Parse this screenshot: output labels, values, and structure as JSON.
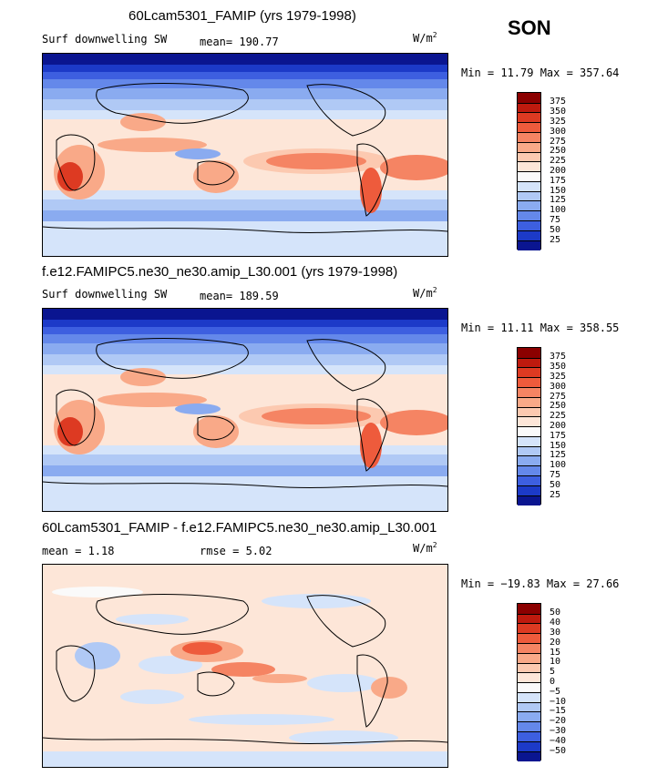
{
  "season": "SON",
  "chart_data": [
    {
      "type": "heatmap",
      "title": "60Lcam5301_FAMIP (yrs 1979-1998)",
      "left_label": "Surf downwelling SW",
      "stat_text": "mean= 190.77",
      "units": "W/m",
      "units_exp": "2",
      "min": 11.79,
      "max": 357.64,
      "minmax_text": "Min =  11.79 Max = 357.64",
      "levels": [
        "375",
        "350",
        "325",
        "300",
        "275",
        "250",
        "225",
        "200",
        "175",
        "150",
        "125",
        "100",
        "75",
        "50",
        "25"
      ],
      "colors": [
        "#8b0000",
        "#be1a0e",
        "#dd3a22",
        "#ee5b3c",
        "#f58463",
        "#f9a988",
        "#fcc9b0",
        "#fde6d8",
        "#fafafa",
        "#d5e4fa",
        "#b0c9f5",
        "#8aabf0",
        "#6488ea",
        "#3d5fe0",
        "#1c3ac8",
        "#0a1590"
      ],
      "mean": 190.77
    },
    {
      "type": "heatmap",
      "title": "f.e12.FAMIPC5.ne30_ne30.amip_L30.001 (yrs 1979-1998)",
      "left_label": "Surf downwelling SW",
      "stat_text": "mean= 189.59",
      "units": "W/m",
      "units_exp": "2",
      "min": 11.11,
      "max": 358.55,
      "minmax_text": "Min =  11.11 Max = 358.55",
      "levels": [
        "375",
        "350",
        "325",
        "300",
        "275",
        "250",
        "225",
        "200",
        "175",
        "150",
        "125",
        "100",
        "75",
        "50",
        "25"
      ],
      "colors": [
        "#8b0000",
        "#be1a0e",
        "#dd3a22",
        "#ee5b3c",
        "#f58463",
        "#f9a988",
        "#fcc9b0",
        "#fde6d8",
        "#fafafa",
        "#d5e4fa",
        "#b0c9f5",
        "#8aabf0",
        "#6488ea",
        "#3d5fe0",
        "#1c3ac8",
        "#0a1590"
      ],
      "mean": 189.59
    },
    {
      "type": "heatmap",
      "title": "60Lcam5301_FAMIP - f.e12.FAMIPC5.ne30_ne30.amip_L30.001",
      "left_label": "mean =    1.18",
      "stat_text": "rmse =    5.02",
      "units": "W/m",
      "units_exp": "2",
      "min": -19.83,
      "max": 27.66,
      "minmax_text": "Min = −19.83 Max =  27.66",
      "levels": [
        "50",
        "40",
        "30",
        "20",
        "15",
        "10",
        "5",
        "0",
        "−5",
        "−10",
        "−15",
        "−20",
        "−30",
        "−40",
        "−50"
      ],
      "colors": [
        "#8b0000",
        "#be1a0e",
        "#dd3a22",
        "#ee5b3c",
        "#f58463",
        "#f9a988",
        "#fcc9b0",
        "#fde6d8",
        "#fafafa",
        "#d5e4fa",
        "#b0c9f5",
        "#8aabf0",
        "#6488ea",
        "#3d5fe0",
        "#1c3ac8",
        "#0a1590"
      ],
      "mean": 1.18,
      "rmse": 5.02
    }
  ]
}
